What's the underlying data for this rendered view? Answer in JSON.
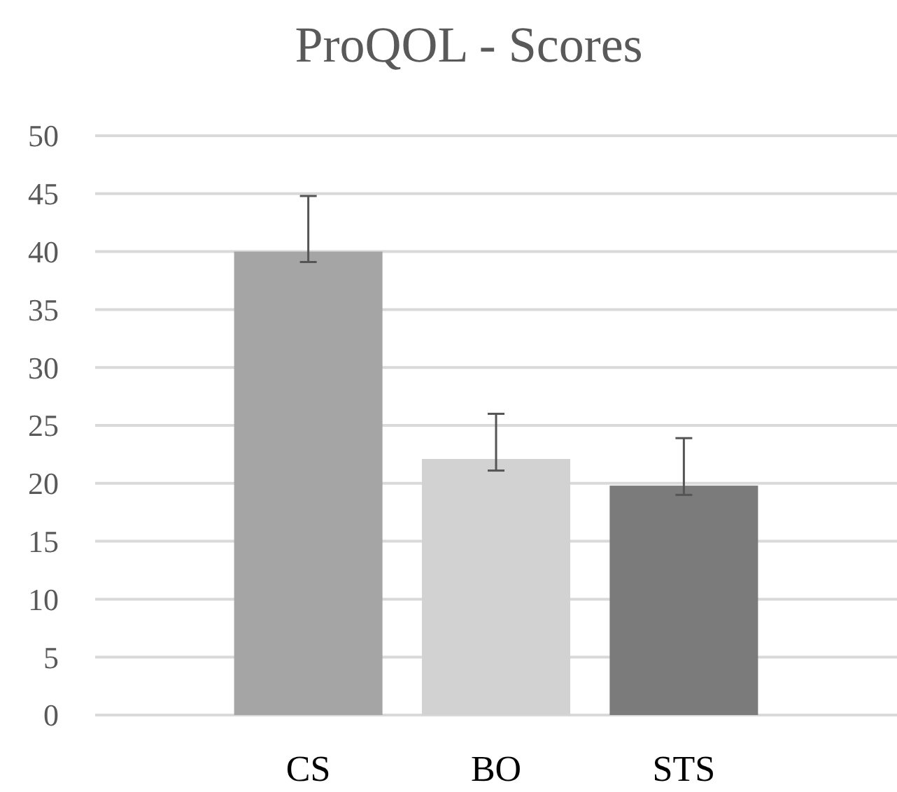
{
  "chart_data": {
    "type": "bar",
    "title": "ProQOL - Scores",
    "categories": [
      "CS",
      "BO",
      "STS"
    ],
    "values": [
      40,
      22.1,
      19.8
    ],
    "colors": [
      "#a5a5a5",
      "#d2d2d2",
      "#7b7b7b"
    ],
    "errors": [
      [
        39.1,
        44.8
      ],
      [
        21.1,
        26
      ],
      [
        19,
        23.9
      ]
    ],
    "ylim": [
      0,
      50
    ],
    "yticks": [
      0,
      5,
      10,
      15,
      20,
      25,
      30,
      35,
      40,
      45,
      50
    ],
    "grid": "y"
  }
}
